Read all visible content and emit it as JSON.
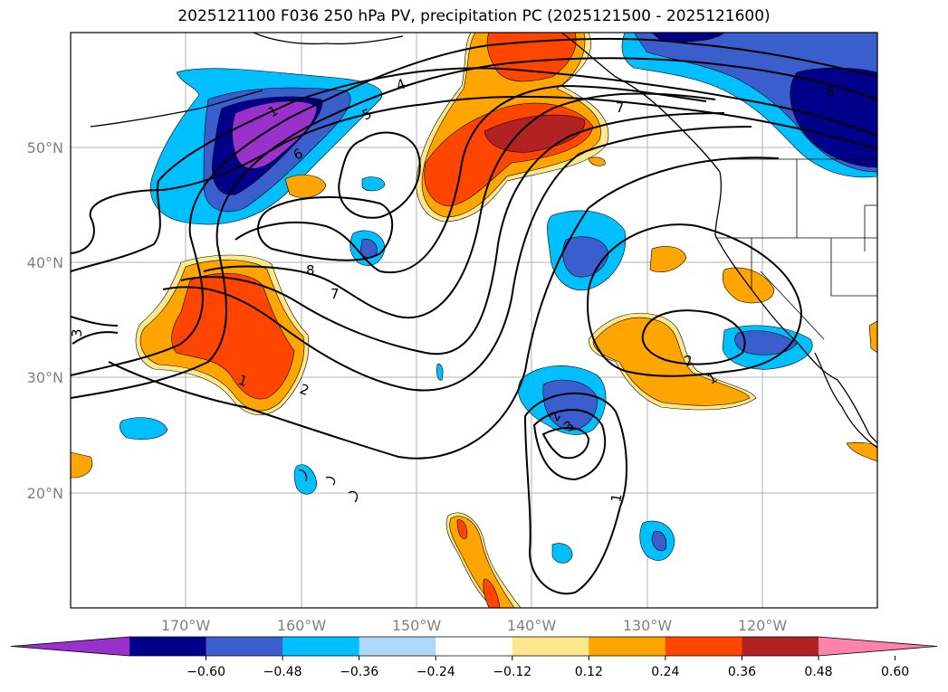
{
  "title": "2025121100 F036 250 hPa PV, precipitation PC (2025121500 - 2025121600)",
  "lat_labels": [
    "50°N",
    "40°N",
    "30°N",
    "20°N"
  ],
  "lon_labels": [
    "170°W",
    "160°W",
    "150°W",
    "140°W",
    "130°W",
    "120°W"
  ],
  "contour_labels": [
    "1",
    "5",
    "4",
    "6",
    "8",
    "7",
    "3",
    "1",
    "2",
    "1",
    "2",
    "3",
    "1",
    "2",
    "7",
    "6"
  ],
  "colorbar": {
    "ticks": [
      "−0.60",
      "−0.48",
      "−0.36",
      "−0.24",
      "−0.12",
      "0.12",
      "0.24",
      "0.36",
      "0.48",
      "0.60"
    ],
    "colors": [
      "#9932cc",
      "#00008b",
      "#3a5fcd",
      "#00bfff",
      "#add8f7",
      "#ffffff",
      "#ffe88c",
      "#ffa500",
      "#ff4500",
      "#b22222",
      "#ff82ab"
    ]
  }
}
